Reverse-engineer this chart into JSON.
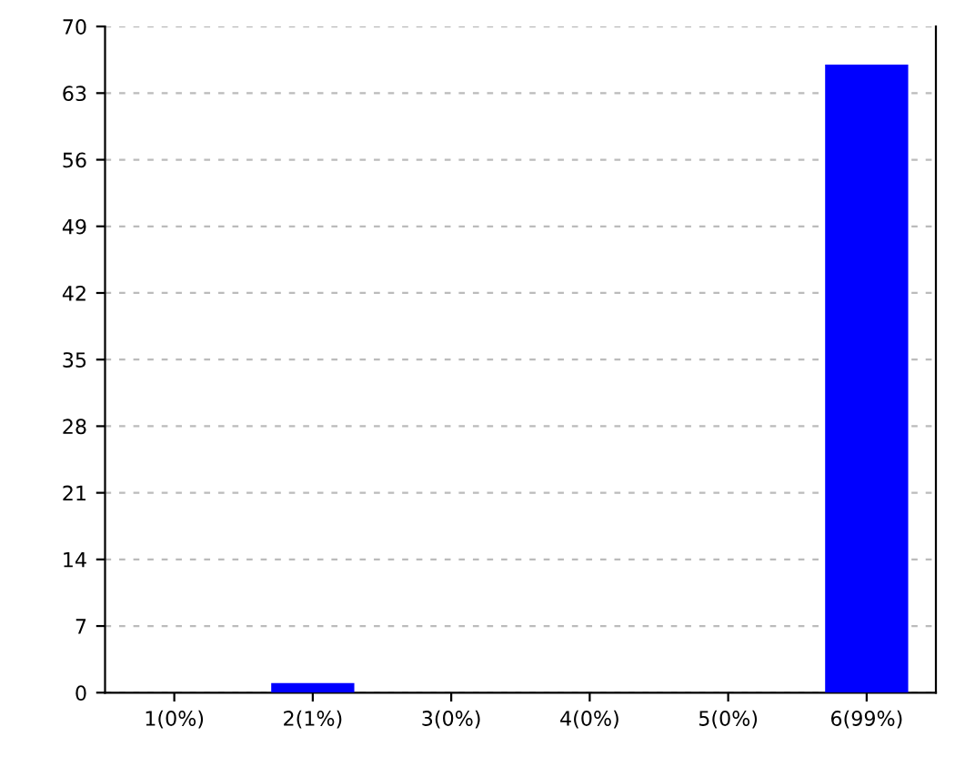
{
  "chart_data": {
    "type": "bar",
    "categories": [
      "1(0%)",
      "2(1%)",
      "3(0%)",
      "4(0%)",
      "5(0%)",
      "6(99%)"
    ],
    "values": [
      0,
      1,
      0,
      0,
      0,
      66
    ],
    "color": "#0000ff",
    "ylim": [
      0,
      70
    ],
    "yticks": [
      0,
      7,
      14,
      21,
      28,
      35,
      42,
      49,
      56,
      63,
      70
    ],
    "grid": "y",
    "legend": false
  }
}
